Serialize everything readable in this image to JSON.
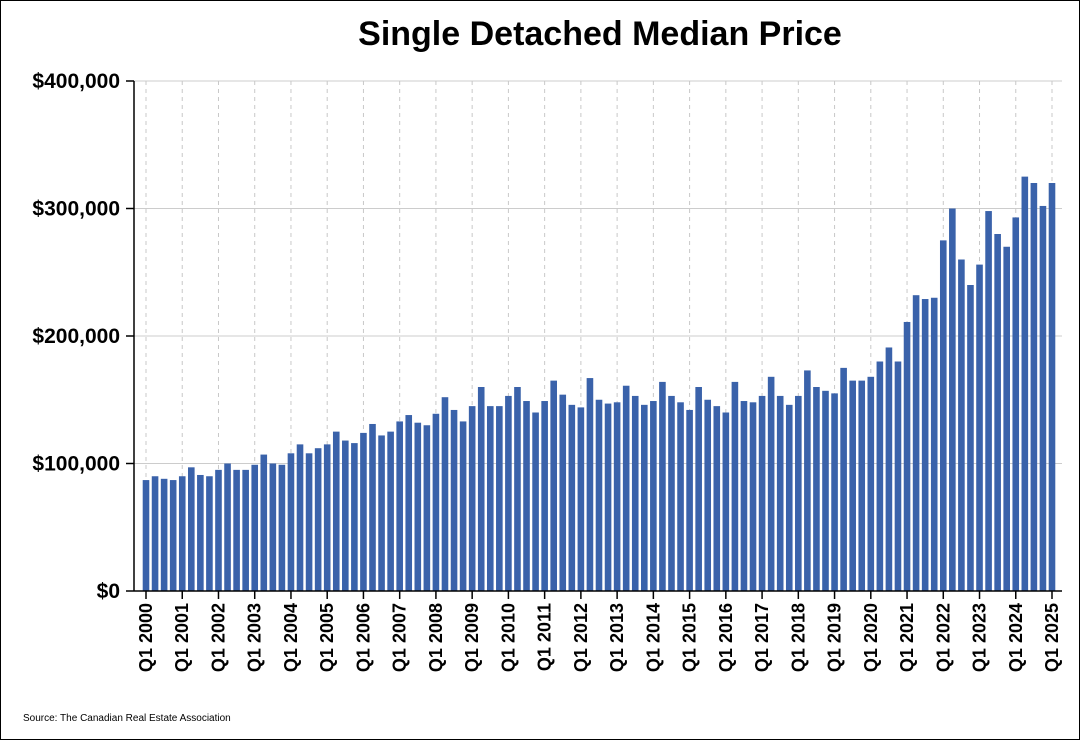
{
  "chart_data": {
    "type": "bar",
    "title": "Single Detached Median Price",
    "xlabel": "",
    "ylabel": "",
    "ylim": [
      0,
      400000
    ],
    "y_tick_values": [
      0,
      100000,
      200000,
      300000,
      400000
    ],
    "y_tick_labels": [
      "$0",
      "$100,000",
      "$200,000",
      "$300,000",
      "$400,000"
    ],
    "x_tick_labels": [
      "Q1 2000",
      "Q1 2001",
      "Q1 2002",
      "Q1 2003",
      "Q1 2004",
      "Q1 2005",
      "Q1 2006",
      "Q1 2007",
      "Q1 2008",
      "Q1 2009",
      "Q1 2010",
      "Q1 2011",
      "Q1 2012",
      "Q1 2013",
      "Q1 2014",
      "Q1 2015",
      "Q1 2016",
      "Q1 2017",
      "Q1 2018",
      "Q1 2019",
      "Q1 2020",
      "Q1 2021",
      "Q1 2022",
      "Q1 2023",
      "Q1 2024",
      "Q1 2025"
    ],
    "grid": true,
    "bar_color": "#3a62aa",
    "categories": [
      "Q1 2000",
      "Q2 2000",
      "Q3 2000",
      "Q4 2000",
      "Q1 2001",
      "Q2 2001",
      "Q3 2001",
      "Q4 2001",
      "Q1 2002",
      "Q2 2002",
      "Q3 2002",
      "Q4 2002",
      "Q1 2003",
      "Q2 2003",
      "Q3 2003",
      "Q4 2003",
      "Q1 2004",
      "Q2 2004",
      "Q3 2004",
      "Q4 2004",
      "Q1 2005",
      "Q2 2005",
      "Q3 2005",
      "Q4 2005",
      "Q1 2006",
      "Q2 2006",
      "Q3 2006",
      "Q4 2006",
      "Q1 2007",
      "Q2 2007",
      "Q3 2007",
      "Q4 2007",
      "Q1 2008",
      "Q2 2008",
      "Q3 2008",
      "Q4 2008",
      "Q1 2009",
      "Q2 2009",
      "Q3 2009",
      "Q4 2009",
      "Q1 2010",
      "Q2 2010",
      "Q3 2010",
      "Q4 2010",
      "Q1 2011",
      "Q2 2011",
      "Q3 2011",
      "Q4 2011",
      "Q1 2012",
      "Q2 2012",
      "Q3 2012",
      "Q4 2012",
      "Q1 2013",
      "Q2 2013",
      "Q3 2013",
      "Q4 2013",
      "Q1 2014",
      "Q2 2014",
      "Q3 2014",
      "Q4 2014",
      "Q1 2015",
      "Q2 2015",
      "Q3 2015",
      "Q4 2015",
      "Q1 2016",
      "Q2 2016",
      "Q3 2016",
      "Q4 2016",
      "Q1 2017",
      "Q2 2017",
      "Q3 2017",
      "Q4 2017",
      "Q1 2018",
      "Q2 2018",
      "Q3 2018",
      "Q4 2018",
      "Q1 2019",
      "Q2 2019",
      "Q3 2019",
      "Q4 2019",
      "Q1 2020",
      "Q2 2020",
      "Q3 2020",
      "Q4 2020",
      "Q1 2021",
      "Q2 2021",
      "Q3 2021",
      "Q4 2021",
      "Q1 2022",
      "Q2 2022",
      "Q3 2022",
      "Q4 2022",
      "Q1 2023",
      "Q2 2023",
      "Q3 2023",
      "Q4 2023",
      "Q1 2024",
      "Q2 2024",
      "Q3 2024",
      "Q4 2024",
      "Q1 2025"
    ],
    "values": [
      87000,
      90000,
      88000,
      87000,
      90000,
      97000,
      91000,
      90000,
      95000,
      100000,
      95000,
      95000,
      99000,
      107000,
      100000,
      99000,
      108000,
      115000,
      108000,
      112000,
      115000,
      125000,
      118000,
      116000,
      124000,
      131000,
      122000,
      125000,
      133000,
      138000,
      132000,
      130000,
      139000,
      152000,
      142000,
      133000,
      145000,
      160000,
      145000,
      145000,
      153000,
      160000,
      149000,
      140000,
      149000,
      165000,
      154000,
      146000,
      144000,
      167000,
      150000,
      147000,
      148000,
      161000,
      153000,
      146000,
      149000,
      164000,
      153000,
      148000,
      142000,
      160000,
      150000,
      145000,
      140000,
      164000,
      149000,
      148000,
      153000,
      168000,
      153000,
      146000,
      153000,
      173000,
      160000,
      157000,
      155000,
      175000,
      165000,
      165000,
      168000,
      180000,
      191000,
      180000,
      211000,
      232000,
      229000,
      230000,
      275000,
      300000,
      260000,
      240000,
      256000,
      298000,
      280000,
      270000,
      293000,
      325000,
      320000,
      302000,
      320000
    ]
  },
  "footer": {
    "source": "Source: The Canadian Real Estate Association"
  }
}
